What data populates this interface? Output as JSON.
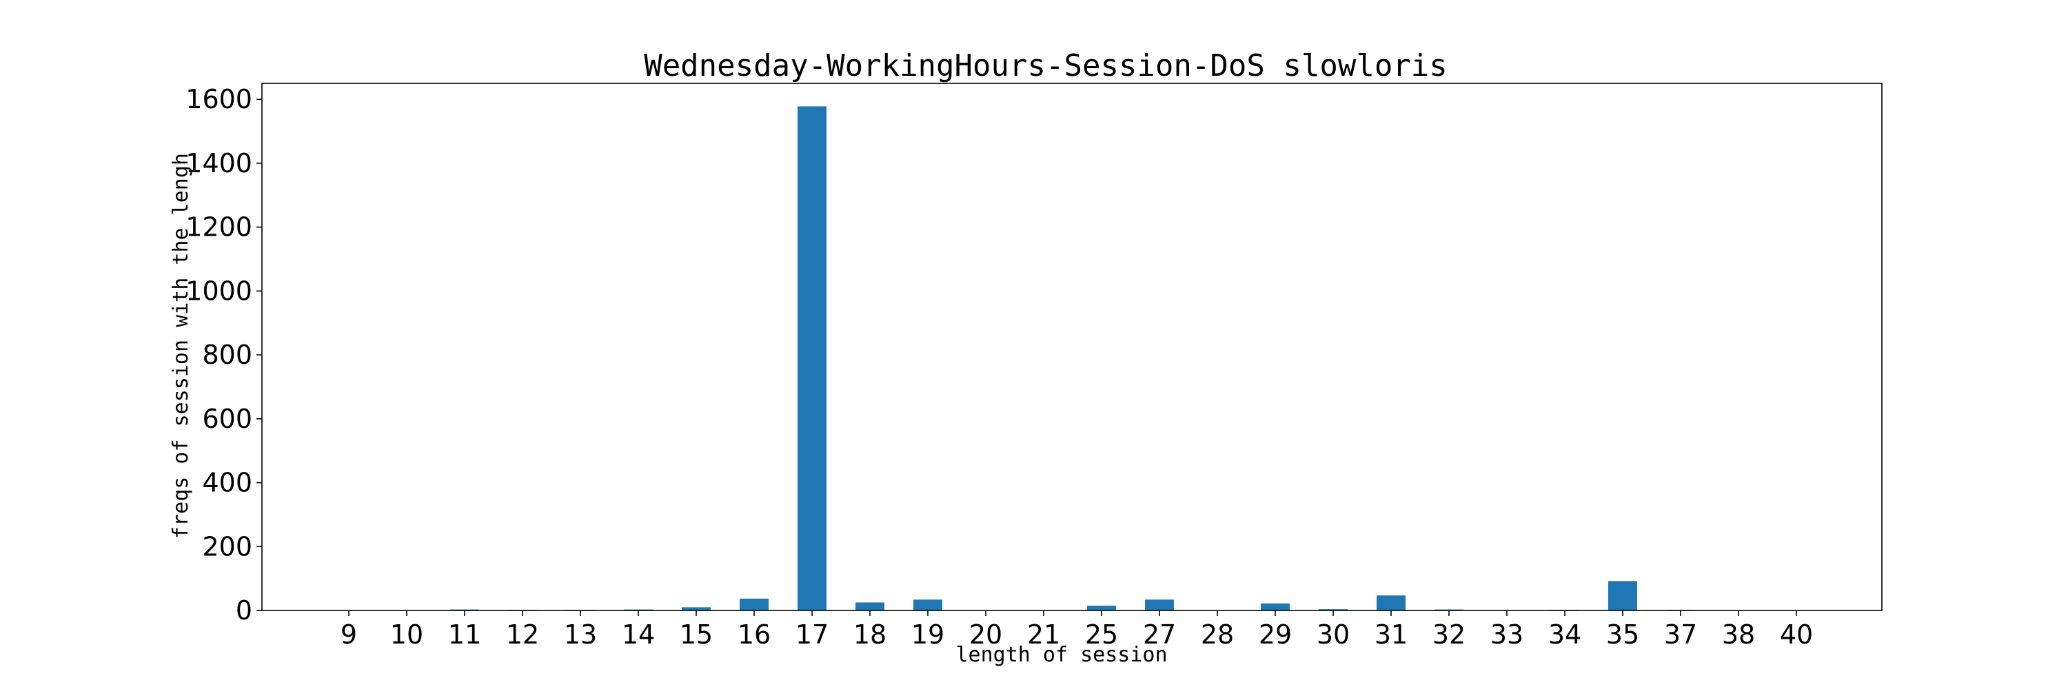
{
  "chart_data": {
    "type": "bar",
    "title": "Wednesday-WorkingHours-Session-DoS slowloris",
    "xlabel": "length of session",
    "ylabel": "freqs of session with the lengh",
    "categories": [
      "9",
      "10",
      "11",
      "12",
      "13",
      "14",
      "15",
      "16",
      "17",
      "18",
      "19",
      "20",
      "21",
      "25",
      "27",
      "28",
      "29",
      "30",
      "31",
      "32",
      "33",
      "34",
      "35",
      "37",
      "38",
      "40"
    ],
    "values": [
      1,
      1,
      3,
      2,
      2,
      3,
      10,
      37,
      1578,
      25,
      34,
      1,
      1,
      15,
      34,
      1,
      22,
      4,
      47,
      3,
      1,
      2,
      92,
      2,
      1,
      1
    ],
    "ylim": [
      0,
      1650
    ],
    "yticks": [
      0,
      200,
      400,
      600,
      800,
      1000,
      1200,
      1400,
      1600
    ],
    "grid": false,
    "bar_color": "#1f77b4"
  }
}
